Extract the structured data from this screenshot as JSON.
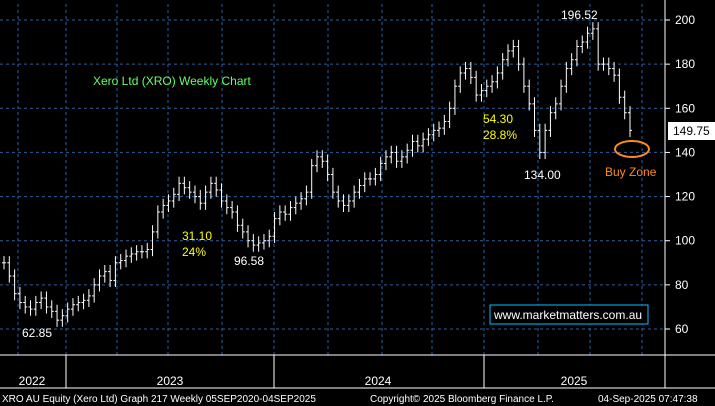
{
  "chart_data": {
    "type": "line",
    "title": "Xero Ltd (XRO) Weekly Chart",
    "y_ticks": [
      60,
      80,
      100,
      120,
      140,
      160,
      180,
      200
    ],
    "ylim": [
      55,
      205
    ],
    "x_tick_labels": [
      "2022",
      "2023",
      "2024",
      "2025"
    ],
    "last_price": "149.75",
    "grid": true,
    "colors": {
      "background": "#000000",
      "grid": "#2b5f9e",
      "bars": "#ffffff",
      "annotation_yellow": "#ffff00",
      "annotation_orange": "#ff8c1a",
      "title": "#66ff66",
      "watermark_border": "#00bfff"
    },
    "series": [
      {
        "values": [
          90,
          84,
          76,
          72,
          70,
          69,
          72,
          74,
          70,
          68,
          64,
          66,
          69,
          71,
          72,
          73,
          75,
          80,
          84,
          86,
          82,
          90,
          91,
          93,
          94,
          95,
          95,
          96,
          104,
          113,
          116,
          118,
          121,
          126,
          124,
          122,
          120,
          117,
          122,
          126,
          123,
          118,
          115,
          113,
          107,
          104,
          100,
          98,
          99,
          100,
          102,
          110,
          113,
          112,
          115,
          117,
          119,
          122,
          134,
          138,
          136,
          130,
          122,
          118,
          116,
          118,
          122,
          125,
          128,
          128,
          130,
          135,
          138,
          140,
          136,
          138,
          141,
          145,
          143,
          146,
          148,
          150,
          151,
          154,
          160,
          170,
          176,
          178,
          174,
          166,
          168,
          170,
          172,
          176,
          182,
          186,
          188,
          180,
          170,
          162,
          150,
          140,
          150,
          158,
          162,
          170,
          178,
          182,
          188,
          190,
          194,
          196,
          180,
          180,
          178,
          175,
          165,
          158,
          150
        ]
      }
    ],
    "annotations": [
      {
        "text": "196.52",
        "color": "white"
      },
      {
        "text": "54.30",
        "color": "yellow"
      },
      {
        "text": "28.8%",
        "color": "yellow"
      },
      {
        "text": "134.00",
        "color": "white"
      },
      {
        "text": "31.10",
        "color": "yellow"
      },
      {
        "text": "24%",
        "color": "yellow"
      },
      {
        "text": "96.58",
        "color": "white"
      },
      {
        "text": "62.85",
        "color": "white"
      },
      {
        "text": "Buy Zone",
        "color": "orange"
      }
    ],
    "watermark": "www.marketmatters.com.au"
  },
  "footer": {
    "left": "XRO AU Equity (Xero Ltd) Graph 217  Weekly 05SEP2020-04SEP2025",
    "center": "Copyright© 2025 Bloomberg Finance L.P.",
    "right": "04-Sep-2025 07:47:38"
  }
}
